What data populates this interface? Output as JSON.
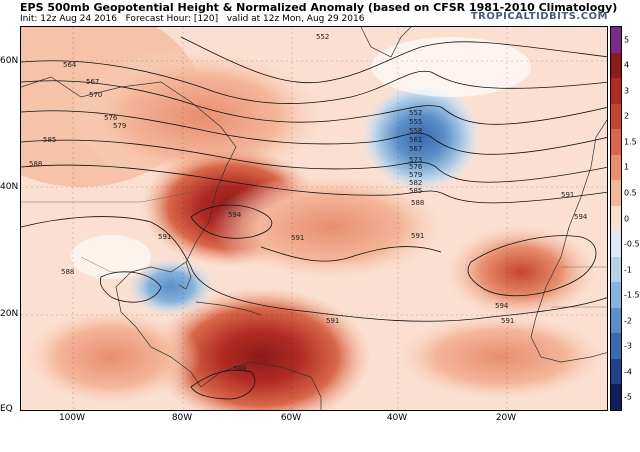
{
  "header": {
    "title": "EPS 500mb Geopotential Height & Normalized Anomaly (based on CFSR 1981-2010 Climatology)",
    "init": "Init: 12z Aug 24 2016",
    "forecast_hour": "Forecast Hour: [120]",
    "valid": "valid at 12z Mon, Aug 29 2016",
    "brand": "TROPICALTIDBITS.COM"
  },
  "axes": {
    "lat_labels": [
      "60N",
      "40N",
      "20N",
      "EQ"
    ],
    "lon_labels": [
      "100W",
      "80W",
      "60W",
      "40W",
      "20W"
    ]
  },
  "colorbar": {
    "ticks": [
      "5",
      "4",
      "3",
      "2",
      "1.5",
      "1",
      "0.5",
      "0",
      "-0.5",
      "-1",
      "-1.5",
      "-2",
      "-3",
      "-4",
      "-5"
    ],
    "colors": [
      "#7b2b8a",
      "#8a1b1b",
      "#b02a22",
      "#c6452e",
      "#d9684a",
      "#e88e6e",
      "#f4b69a",
      "#fbe0d1",
      "#dfe9f5",
      "#b6d1ea",
      "#86b3db",
      "#5b8fc7",
      "#3a69ad",
      "#213f8a",
      "#0e1f5c"
    ]
  },
  "contours": {
    "labels": [
      "552",
      "555",
      "558",
      "561",
      "564",
      "567",
      "570",
      "573",
      "576",
      "579",
      "582",
      "585",
      "588",
      "591",
      "594"
    ],
    "placed": [
      "552",
      "564",
      "567",
      "570",
      "576",
      "579",
      "585",
      "588",
      "591",
      "594",
      "552",
      "555",
      "558",
      "561",
      "567",
      "573",
      "576",
      "579",
      "582",
      "585",
      "588",
      "591",
      "591",
      "591",
      "594",
      "588",
      "588",
      "591",
      "591",
      "594"
    ]
  },
  "colors": {
    "warm": "#c6452e",
    "cool": "#3a69ad",
    "land": "#e8e2d0"
  }
}
